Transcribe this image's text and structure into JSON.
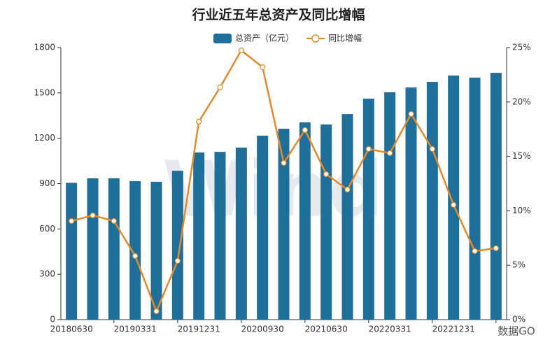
{
  "chart_data": {
    "type": "bar_line",
    "title": "行业近五年总资产及同比增幅",
    "watermark": "Wind",
    "badge": "数据GO",
    "categories": [
      "20180630",
      null,
      null,
      "20190331",
      null,
      null,
      "20191231",
      null,
      null,
      "20200930",
      null,
      null,
      "20210630",
      null,
      null,
      "20220331",
      null,
      null,
      "20221231",
      null,
      null
    ],
    "series": [
      {
        "name": "总资产（亿元）",
        "color": "#1f6f9b",
        "type": "bar",
        "values": [
          905,
          935,
          935,
          916,
          912,
          985,
          1106,
          1110,
          1138,
          1217,
          1263,
          1305,
          1291,
          1360,
          1462,
          1504,
          1536,
          1573,
          1615,
          1601,
          1633
        ]
      },
      {
        "name": "同比增幅",
        "color": "#e38a2b",
        "type": "line",
        "axis": "y2",
        "values": [
          9.06,
          9.58,
          9.06,
          5.85,
          0.77,
          5.4,
          18.19,
          21.34,
          24.74,
          23.2,
          14.4,
          17.42,
          13.37,
          11.95,
          15.68,
          15.3,
          18.9,
          15.68,
          10.54,
          6.3,
          6.56
        ]
      }
    ],
    "ylim": [
      0,
      1800
    ],
    "yticks": [
      0,
      300,
      600,
      900,
      1200,
      1500,
      1800
    ],
    "y2lim": [
      0,
      25
    ],
    "y2ticks": [
      {
        "value": 0,
        "label": "0%"
      },
      {
        "value": 5,
        "label": "5%"
      },
      {
        "value": 10,
        "label": "10%"
      },
      {
        "value": 15,
        "label": "15%"
      },
      {
        "value": 20,
        "label": "20%"
      },
      {
        "value": 25,
        "label": "25%"
      }
    ],
    "legend": "top"
  }
}
